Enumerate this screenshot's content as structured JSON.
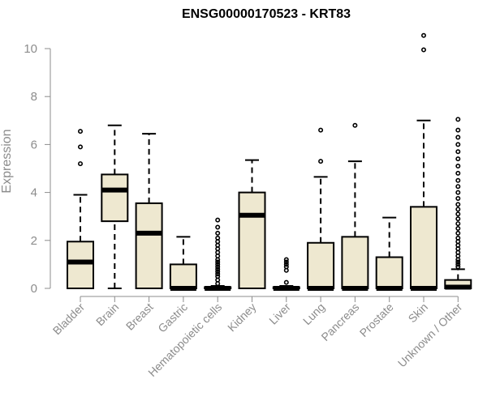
{
  "colors": {
    "box_fill": "#EEE8D0",
    "stroke": "#000000",
    "axis_text": "#8c8c8c"
  },
  "chart_data": {
    "type": "box",
    "title": "ENSG00000170523 - KRT83",
    "xlabel": "",
    "ylabel": "Expression",
    "ylim": [
      0,
      10.6
    ],
    "yticks": [
      0,
      2,
      4,
      6,
      8,
      10
    ],
    "grid": false,
    "categories": [
      "Bladder",
      "Brain",
      "Breast",
      "Gastric",
      "Hematopoietic cells",
      "Kidney",
      "Liver",
      "Lung",
      "Pancreas",
      "Prostate",
      "Skin",
      "Unknown / Other"
    ],
    "boxes": [
      {
        "q1": 0.0,
        "median": 1.1,
        "q3": 1.95,
        "whisker_low": 0.0,
        "whisker_high": 3.9,
        "outliers": [
          5.2,
          5.9,
          6.55
        ]
      },
      {
        "q1": 2.8,
        "median": 4.1,
        "q3": 4.75,
        "whisker_low": 0.0,
        "whisker_high": 6.8,
        "outliers": []
      },
      {
        "q1": 0.0,
        "median": 2.3,
        "q3": 3.55,
        "whisker_low": 0.0,
        "whisker_high": 6.45,
        "outliers": []
      },
      {
        "q1": 0.0,
        "median": 0.0,
        "q3": 1.0,
        "whisker_low": 0.0,
        "whisker_high": 2.15,
        "outliers": []
      },
      {
        "q1": 0.0,
        "median": 0.0,
        "q3": 0.05,
        "whisker_low": 0.0,
        "whisker_high": 0.1,
        "outliers": [
          0.2,
          0.35,
          0.5,
          0.6,
          0.7,
          0.8,
          0.9,
          1.0,
          1.1,
          1.2,
          1.35,
          1.5,
          1.65,
          1.8,
          1.95,
          2.1,
          2.3,
          2.55,
          2.85
        ]
      },
      {
        "q1": 0.0,
        "median": 3.05,
        "q3": 4.0,
        "whisker_low": 0.0,
        "whisker_high": 5.35,
        "outliers": []
      },
      {
        "q1": 0.0,
        "median": 0.0,
        "q3": 0.05,
        "whisker_low": 0.0,
        "whisker_high": 0.1,
        "outliers": [
          0.25,
          0.75,
          0.9,
          1.0,
          1.1,
          1.2
        ]
      },
      {
        "q1": 0.0,
        "median": 0.0,
        "q3": 1.9,
        "whisker_low": 0.0,
        "whisker_high": 4.65,
        "outliers": [
          5.3,
          6.6
        ]
      },
      {
        "q1": 0.0,
        "median": 0.0,
        "q3": 2.15,
        "whisker_low": 0.0,
        "whisker_high": 5.3,
        "outliers": [
          6.8
        ]
      },
      {
        "q1": 0.0,
        "median": 0.0,
        "q3": 1.3,
        "whisker_low": 0.0,
        "whisker_high": 2.95,
        "outliers": []
      },
      {
        "q1": 0.0,
        "median": 0.0,
        "q3": 3.4,
        "whisker_low": 0.0,
        "whisker_high": 7.0,
        "outliers": [
          9.95,
          10.55
        ]
      },
      {
        "q1": 0.0,
        "median": 0.05,
        "q3": 0.35,
        "whisker_low": 0.0,
        "whisker_high": 0.8,
        "outliers": [
          0.9,
          1.0,
          1.1,
          1.2,
          1.35,
          1.5,
          1.65,
          1.8,
          1.95,
          2.1,
          2.3,
          2.5,
          2.7,
          2.9,
          3.1,
          3.3,
          3.5,
          3.75,
          4.0,
          4.25,
          4.5,
          4.8,
          5.1,
          5.4,
          5.7,
          6.0,
          6.3,
          6.6,
          7.05
        ]
      }
    ]
  }
}
